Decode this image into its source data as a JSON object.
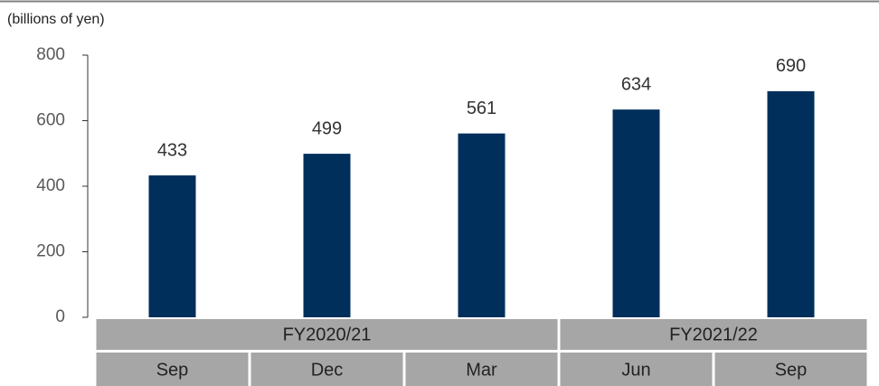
{
  "chart_data": {
    "type": "bar",
    "unit_label": "(billions of yen)",
    "groups": [
      {
        "name": "FY2020/21",
        "categories": [
          "Sep",
          "Dec",
          "Mar"
        ]
      },
      {
        "name": "FY2021/22",
        "categories": [
          "Jun",
          "Sep"
        ]
      }
    ],
    "values": [
      433,
      499,
      561,
      634,
      690
    ],
    "color": "#002f5c",
    "ylim": [
      0,
      800
    ],
    "yticks": [
      0,
      200,
      400,
      600,
      800
    ]
  }
}
